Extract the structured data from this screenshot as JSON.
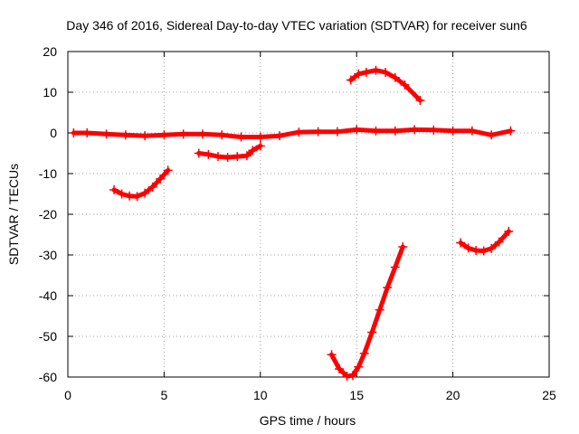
{
  "chart_data": {
    "type": "scatter",
    "title": "Day 346 of 2016, Sidereal Day-to-day VTEC variation (SDTVAR) for receiver sun6",
    "xlabel": "GPS time / hours",
    "ylabel": "SDTVAR / TECUs",
    "xlim": [
      0,
      25
    ],
    "ylim": [
      -60,
      20
    ],
    "x_ticks": [
      0,
      5,
      10,
      15,
      20,
      25
    ],
    "y_ticks": [
      -60,
      -50,
      -40,
      -30,
      -20,
      -10,
      0,
      10,
      20
    ],
    "grid": true,
    "legend": "none",
    "marker": "plus",
    "color": "#ff0000",
    "series": [
      {
        "x": [
          0.3,
          1,
          2,
          3,
          4,
          5,
          6,
          7,
          8,
          9,
          10,
          11,
          12,
          13,
          14,
          15,
          16,
          17,
          18,
          19,
          20,
          21,
          22,
          23
        ],
        "values": [
          0,
          0,
          -0.3,
          -0.5,
          -0.7,
          -0.5,
          -0.3,
          -0.3,
          -0.5,
          -1.0,
          -1.0,
          -0.7,
          0.2,
          0.3,
          0.3,
          0.8,
          0.5,
          0.5,
          0.8,
          0.7,
          0.5,
          0.5,
          -0.5,
          0.5
        ]
      },
      {
        "x": [
          2.4,
          2.8,
          3.2,
          3.6,
          4.0,
          4.4,
          4.8,
          5.2
        ],
        "values": [
          -14.0,
          -15.0,
          -15.5,
          -15.6,
          -14.8,
          -13.3,
          -11.3,
          -9.2
        ]
      },
      {
        "x": [
          6.8,
          7.3,
          7.8,
          8.3,
          8.8,
          9.3,
          9.6,
          10.0
        ],
        "values": [
          -5.0,
          -5.3,
          -5.8,
          -6.0,
          -5.8,
          -5.6,
          -4.3,
          -3.2
        ]
      },
      {
        "x": [
          14.7,
          15.1,
          15.5,
          16.0,
          16.5,
          17.0,
          17.5,
          18.3
        ],
        "values": [
          13.0,
          14.5,
          14.9,
          15.4,
          14.9,
          13.6,
          11.8,
          8.0
        ]
      },
      {
        "x": [
          13.7,
          14.1,
          14.5,
          14.8,
          15.1,
          15.4,
          15.8,
          16.2,
          16.6,
          17.0,
          17.4
        ],
        "values": [
          -54.5,
          -58.0,
          -59.8,
          -59.6,
          -57.5,
          -54.2,
          -49.0,
          -43.5,
          -38.0,
          -33.0,
          -28.0
        ]
      },
      {
        "x": [
          20.4,
          20.8,
          21.2,
          21.6,
          22.0,
          22.4,
          22.9
        ],
        "values": [
          -27.0,
          -28.3,
          -28.9,
          -29.0,
          -28.4,
          -26.8,
          -24.2
        ]
      }
    ]
  }
}
